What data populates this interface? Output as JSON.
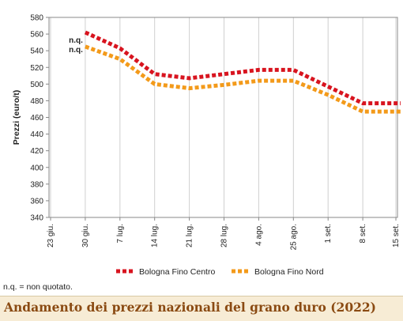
{
  "chart_data": {
    "type": "line",
    "title": "",
    "xlabel": "",
    "ylabel": "Prezzi (euro/t)",
    "ylim": [
      340,
      580
    ],
    "ytick_step": 20,
    "grid": "vertical",
    "legend_position": "bottom",
    "categories": [
      "23 giu.",
      "30 giu.",
      "7 lug.",
      "14 lug.",
      "21 lug.",
      "28 lug.",
      "4 ago.",
      "25 ago.",
      "1 set.",
      "8 set.",
      "15 set."
    ],
    "series": [
      {
        "name": "Bologna Fino Centro",
        "color": "#d8141f",
        "values": [
          null,
          562,
          543,
          512,
          507,
          512,
          517,
          517,
          497,
          477,
          477
        ]
      },
      {
        "name": "Bologna Fino Nord",
        "color": "#f39a1a",
        "values": [
          null,
          545,
          530,
          500,
          495,
          499,
          504,
          504,
          487,
          467,
          467
        ]
      }
    ],
    "annotations": [
      "n.q.",
      "n.q."
    ]
  },
  "footnote": "n.q. = non quotato.",
  "caption": "Andamento dei prezzi nazionali del grano duro (2022)"
}
